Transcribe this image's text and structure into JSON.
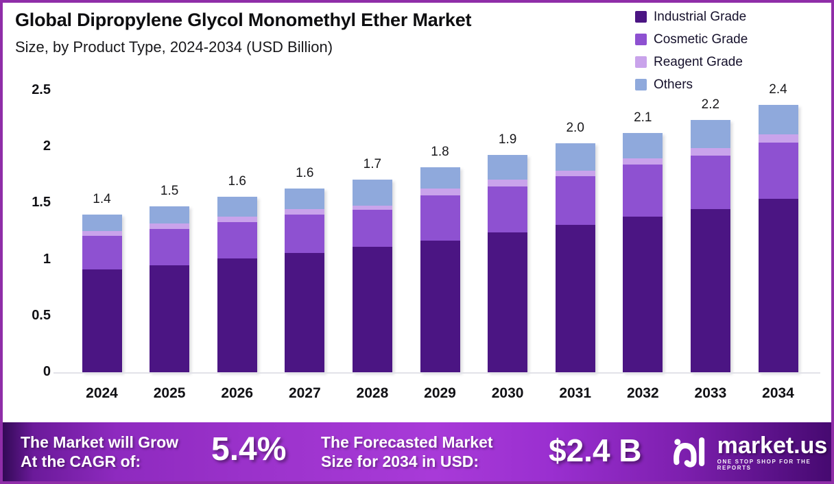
{
  "header": {
    "title": "Global Dipropylene Glycol Monomethyl Ether Market",
    "subtitle": "Size, by Product Type, 2024-2034 (USD Billion)"
  },
  "chart_data": {
    "type": "bar",
    "stacked": true,
    "categories": [
      "2024",
      "2025",
      "2026",
      "2027",
      "2028",
      "2029",
      "2030",
      "2031",
      "2032",
      "2033",
      "2034"
    ],
    "series": [
      {
        "name": "Industrial Grade",
        "color": "#4b1583",
        "values": [
          0.91,
          0.95,
          1.01,
          1.06,
          1.11,
          1.17,
          1.24,
          1.31,
          1.38,
          1.45,
          1.54
        ]
      },
      {
        "name": "Cosmetic Grade",
        "color": "#8e51d1",
        "values": [
          0.3,
          0.32,
          0.32,
          0.34,
          0.33,
          0.4,
          0.41,
          0.43,
          0.46,
          0.47,
          0.5
        ]
      },
      {
        "name": "Reagent Grade",
        "color": "#c9a3eb",
        "values": [
          0.04,
          0.05,
          0.05,
          0.05,
          0.04,
          0.06,
          0.06,
          0.05,
          0.06,
          0.07,
          0.07
        ]
      },
      {
        "name": "Others",
        "color": "#8fa9dc",
        "values": [
          0.15,
          0.15,
          0.18,
          0.18,
          0.23,
          0.19,
          0.22,
          0.24,
          0.22,
          0.25,
          0.26
        ]
      }
    ],
    "total_labels": [
      "1.4",
      "1.5",
      "1.6",
      "1.6",
      "1.7",
      "1.8",
      "1.9",
      "2.0",
      "2.1",
      "2.2",
      "2.4"
    ],
    "title": "Global Dipropylene Glycol Monomethyl Ether Market Size, by Product Type, 2024-2034 (USD Billion)",
    "xlabel": "",
    "ylabel": "",
    "ylim": [
      0,
      2.5
    ],
    "yticks": [
      "0",
      "0.5",
      "1",
      "1.5",
      "2",
      "2.5"
    ],
    "grid": false,
    "legend_position": "top-right"
  },
  "footer": {
    "cagr_label": "The Market will Grow\nAt the CAGR of:",
    "cagr_value": "5.4%",
    "forecast_label": "The Forecasted Market\nSize for 2034 in USD:",
    "forecast_value": "$2.4 B",
    "brand": {
      "name": "market.us",
      "tagline": "ONE STOP SHOP FOR THE REPORTS"
    }
  },
  "colors": {
    "frame_border": "#8f2da8",
    "background": "#ffffff",
    "industrial_grade": "#4b1583",
    "cosmetic_grade": "#8e51d1",
    "reagent_grade": "#c9a3eb",
    "others": "#8fa9dc",
    "footer_text": "#ffffff"
  }
}
